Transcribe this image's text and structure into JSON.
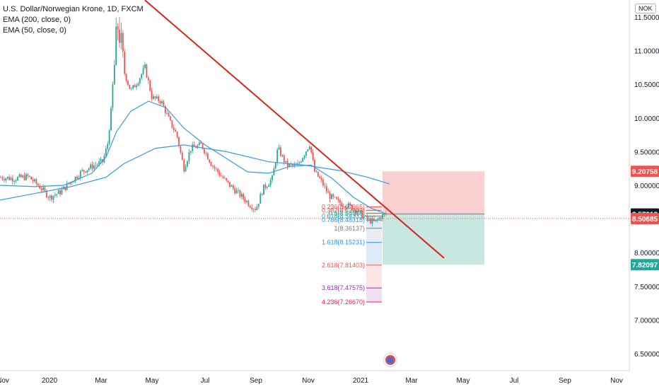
{
  "legend": {
    "title": "U.S. Dollar/Norwegian Krone, 1D, FXCM",
    "ema200": "EMA (200, close, 0)",
    "ema50": "EMA (50, close, 0)"
  },
  "currency_badge": "NOK",
  "colors": {
    "up": "#26a69a",
    "down": "#ef5350",
    "ema": "#3d9ad6",
    "trendline": "#d3281e",
    "stop_zone": "#f7c8c8",
    "target_zone": "#bfe3dc",
    "axis_text": "#131722"
  },
  "chart_data": {
    "type": "candlestick",
    "title": "U.S. Dollar/Norwegian Krone, 1D, FXCM",
    "y_range": [
      6.3,
      11.6
    ],
    "y_ticks": [
      "6.50000",
      "7.00000",
      "7.50000",
      "8.00000",
      "8.50000",
      "9.00000",
      "9.50000",
      "10.00000",
      "10.50000",
      "11.00000",
      "11.50000"
    ],
    "x_ticks": [
      "Nov",
      "2020",
      "Mar",
      "May",
      "Jul",
      "Sep",
      "Nov",
      "2021",
      "Mar",
      "May",
      "Jul",
      "Sep",
      "Nov"
    ],
    "price_keys": [
      [
        0,
        9.12
      ],
      [
        20,
        9.1
      ],
      [
        40,
        9.13
      ],
      [
        58,
        8.96
      ],
      [
        70,
        8.82
      ],
      [
        85,
        8.9
      ],
      [
        100,
        9.05
      ],
      [
        115,
        9.2
      ],
      [
        130,
        9.28
      ],
      [
        145,
        9.35
      ],
      [
        152,
        9.6
      ],
      [
        158,
        10.2
      ],
      [
        162,
        10.8
      ],
      [
        166,
        11.4
      ],
      [
        170,
        11.2
      ],
      [
        175,
        10.7
      ],
      [
        185,
        10.4
      ],
      [
        195,
        10.55
      ],
      [
        205,
        10.75
      ],
      [
        215,
        10.3
      ],
      [
        228,
        10.25
      ],
      [
        240,
        9.95
      ],
      [
        250,
        9.75
      ],
      [
        260,
        9.25
      ],
      [
        270,
        9.55
      ],
      [
        285,
        9.6
      ],
      [
        300,
        9.3
      ],
      [
        320,
        9.05
      ],
      [
        340,
        8.85
      ],
      [
        355,
        8.7
      ],
      [
        362,
        8.65
      ],
      [
        372,
        8.95
      ],
      [
        385,
        9.1
      ],
      [
        393,
        9.55
      ],
      [
        405,
        9.3
      ],
      [
        420,
        9.28
      ],
      [
        432,
        9.5
      ],
      [
        438,
        9.62
      ],
      [
        445,
        9.2
      ],
      [
        455,
        9.05
      ],
      [
        465,
        8.85
      ],
      [
        478,
        8.75
      ],
      [
        492,
        8.7
      ],
      [
        505,
        8.62
      ],
      [
        518,
        8.5
      ],
      [
        530,
        8.45
      ],
      [
        540,
        8.55
      ],
      [
        548,
        8.57
      ]
    ],
    "series": [
      {
        "name": "EMA (200, close, 0)",
        "values": [
          [
            0,
            8.78
          ],
          [
            40,
            8.86
          ],
          [
            100,
            8.98
          ],
          [
            150,
            9.12
          ],
          [
            175,
            9.32
          ],
          [
            220,
            9.55
          ],
          [
            260,
            9.6
          ],
          [
            320,
            9.5
          ],
          [
            380,
            9.35
          ],
          [
            430,
            9.3
          ],
          [
            480,
            9.22
          ],
          [
            520,
            9.12
          ],
          [
            551,
            9.02
          ]
        ]
      },
      {
        "name": "EMA (50, close, 0)",
        "values": [
          [
            0,
            9.0
          ],
          [
            50,
            8.98
          ],
          [
            90,
            9.0
          ],
          [
            130,
            9.18
          ],
          [
            150,
            9.42
          ],
          [
            165,
            9.8
          ],
          [
            185,
            10.1
          ],
          [
            210,
            10.25
          ],
          [
            235,
            10.15
          ],
          [
            260,
            9.85
          ],
          [
            290,
            9.6
          ],
          [
            320,
            9.4
          ],
          [
            350,
            9.2
          ],
          [
            380,
            9.18
          ],
          [
            410,
            9.28
          ],
          [
            440,
            9.3
          ],
          [
            470,
            9.1
          ],
          [
            500,
            8.82
          ],
          [
            525,
            8.66
          ],
          [
            545,
            8.58
          ]
        ]
      }
    ],
    "trendline": {
      "from": [
        205,
        11.75
      ],
      "to": [
        628,
        7.92
      ]
    },
    "fibonacci_levels": [
      {
        "label": "0.236(8.67965)",
        "ratio": "0.236",
        "price": 8.67965
      },
      {
        "label": "0.382(8.62783)",
        "ratio": "0.382",
        "price": 8.62783
      },
      {
        "label": "0.5(8.58558)",
        "ratio": "0.5",
        "price": 8.58558
      },
      {
        "label": "0.618(8.54333)",
        "ratio": "0.618",
        "price": 8.54333
      },
      {
        "label": "0.786(8.48318)",
        "ratio": "0.786",
        "price": 8.48318
      },
      {
        "label": "1(8.36137)",
        "ratio": "1",
        "price": 8.36137
      },
      {
        "label": "1.618(8.15231)",
        "ratio": "1.618",
        "price": 8.15231
      },
      {
        "label": "2.618(7.81403)",
        "ratio": "2.618",
        "price": 7.81403
      },
      {
        "label": "3.618(7.47575)",
        "ratio": "3.618",
        "price": 7.47575
      },
      {
        "label": "4.236(7.26670)",
        "ratio": "4.236",
        "price": 7.2667
      }
    ],
    "position": {
      "entry": 8.57318,
      "stop": 9.20758,
      "target": 7.82097
    },
    "price_labels": [
      {
        "text": "9.20758",
        "value": 9.20758,
        "color": "#ef5350"
      },
      {
        "text": "8.57318",
        "value": 8.57318,
        "color": "#131722"
      },
      {
        "text": "8.50685",
        "value": 8.50685,
        "color": "#ef5350"
      },
      {
        "text": "7.82097",
        "value": 7.82097,
        "color": "#26a69a"
      }
    ],
    "current_price": 8.50685,
    "grid": false
  }
}
